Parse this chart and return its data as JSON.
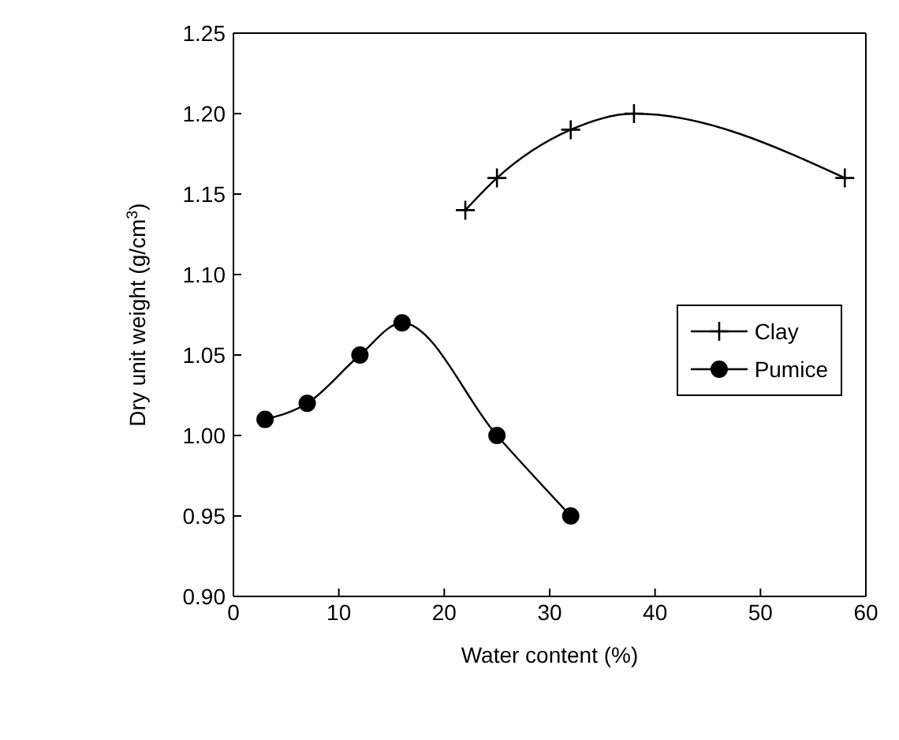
{
  "chart_data": {
    "type": "line",
    "xlabel": "Water content (%)",
    "ylabel": "Dry unit weight (g/cm$^{3}$)",
    "xlim": [
      0,
      60
    ],
    "xticks": [
      0,
      10,
      20,
      30,
      40,
      50,
      60
    ],
    "ylim": [
      0.9,
      1.25
    ],
    "yticks": [
      {
        "value": 0.9,
        "label": "0.90"
      },
      {
        "value": 0.95,
        "label": "0.95"
      },
      {
        "value": 1.0,
        "label": "1.00"
      },
      {
        "value": 1.05,
        "label": "1.05"
      },
      {
        "value": 1.1,
        "label": "1.10"
      },
      {
        "value": 1.15,
        "label": "1.15"
      },
      {
        "value": 1.2,
        "label": "1.20"
      },
      {
        "value": 1.25,
        "label": "1.25"
      }
    ],
    "legend": "right",
    "series": [
      {
        "name": "Clay",
        "color": "#000000",
        "marker": "cross",
        "x": [
          22,
          25,
          32,
          38,
          58
        ],
        "values": [
          1.14,
          1.16,
          1.19,
          1.2,
          1.16
        ]
      },
      {
        "name": "Pumice",
        "color": "#000000",
        "marker": "circle",
        "x": [
          3,
          7,
          12,
          16,
          25,
          32
        ],
        "values": [
          1.01,
          1.02,
          1.05,
          1.07,
          1.0,
          0.95
        ]
      }
    ]
  }
}
